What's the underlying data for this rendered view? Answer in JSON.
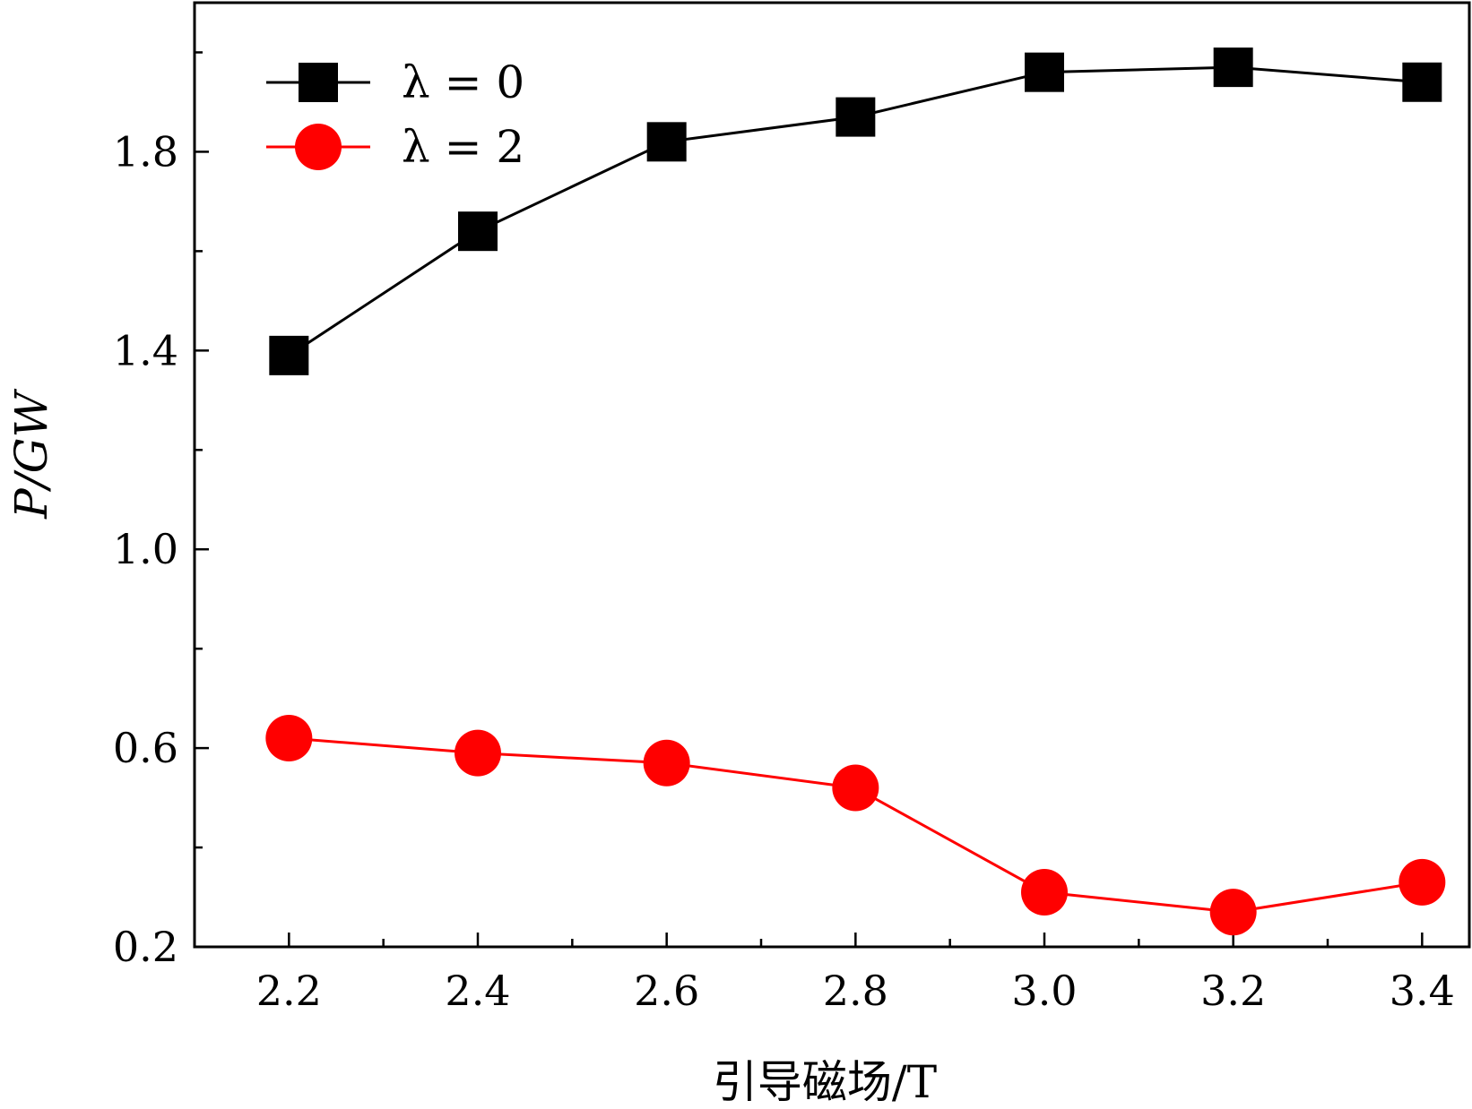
{
  "chart_data": {
    "type": "line",
    "title": "",
    "xlabel": "引导磁场/T",
    "ylabel": "P/GW",
    "xlim": [
      2.1,
      3.45
    ],
    "ylim": [
      0.2,
      2.1
    ],
    "x": [
      2.2,
      2.4,
      2.6,
      2.8,
      3.0,
      3.2,
      3.4
    ],
    "xticks": [
      "2.2",
      "2.4",
      "2.6",
      "2.8",
      "3.0",
      "3.2",
      "3.4"
    ],
    "yticks": [
      "0.2",
      "0.6",
      "1.0",
      "1.4",
      "1.8"
    ],
    "grid": false,
    "legend_position": "top-left",
    "series": [
      {
        "name": "λ = 0",
        "marker": "square",
        "color": "#000000",
        "values": [
          1.39,
          1.64,
          1.82,
          1.87,
          1.96,
          1.97,
          1.94
        ]
      },
      {
        "name": "λ = 2",
        "marker": "circle",
        "color": "#ff0000",
        "values": [
          0.62,
          0.59,
          0.57,
          0.52,
          0.31,
          0.27,
          0.33
        ]
      }
    ]
  }
}
